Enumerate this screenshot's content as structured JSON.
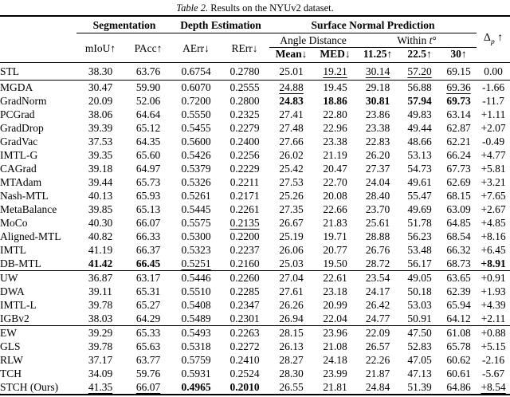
{
  "caption": {
    "label": "Table 2.",
    "text": "Results on the NYUv2 dataset."
  },
  "header": {
    "groups": [
      {
        "label": "Segmentation"
      },
      {
        "label": "Depth Estimation"
      },
      {
        "label": "Surface Normal Prediction"
      }
    ],
    "metric_cols": [
      "mIoU↑",
      "PAcc↑",
      "AErr↓",
      "RErr↓"
    ],
    "angle_distance": "Angle Distance",
    "within_prefix": "Within",
    "within_t": "t",
    "within_degree": "°",
    "angle_cols": [
      "Mean↓",
      "MED↓"
    ],
    "within_cols": [
      "11.25↑",
      "22.5↑",
      "30↑"
    ],
    "delta": {
      "symbol": "Δ",
      "sub": "p",
      "arrow": "↑"
    }
  },
  "sections": [
    {
      "rows": [
        {
          "method": "STL",
          "cells": [
            "38.30",
            "63.76",
            "0.6754",
            "0.2780",
            "25.01",
            "__19.21__",
            "__30.14__",
            "__57.20__",
            "69.15",
            "0.00"
          ]
        }
      ]
    },
    {
      "rows": [
        {
          "method": "MGDA",
          "cells": [
            "30.47",
            "59.90",
            "0.6070",
            "0.2555",
            "__24.88__",
            "19.45",
            "29.18",
            "56.88",
            "__69.36__",
            "-1.66"
          ]
        },
        {
          "method": "GradNorm",
          "cells": [
            "20.09",
            "52.06",
            "0.7200",
            "0.2800",
            "**24.83**",
            "**18.86**",
            "**30.81**",
            "**57.94**",
            "**69.73**",
            "-11.7"
          ]
        },
        {
          "method": "PCGrad",
          "cells": [
            "38.06",
            "64.64",
            "0.5550",
            "0.2325",
            "27.41",
            "22.80",
            "23.86",
            "49.83",
            "63.14",
            "+1.11"
          ]
        },
        {
          "method": "GradDrop",
          "cells": [
            "39.39",
            "65.12",
            "0.5455",
            "0.2279",
            "27.48",
            "22.96",
            "23.38",
            "49.44",
            "62.87",
            "+2.07"
          ]
        },
        {
          "method": "GradVac",
          "cells": [
            "37.53",
            "64.35",
            "0.5600",
            "0.2400",
            "27.66",
            "23.38",
            "22.83",
            "48.66",
            "62.21",
            "-0.49"
          ]
        },
        {
          "method": "IMTL-G",
          "cells": [
            "39.35",
            "65.60",
            "0.5426",
            "0.2256",
            "26.02",
            "21.19",
            "26.20",
            "53.13",
            "66.24",
            "+4.77"
          ]
        },
        {
          "method": "CAGrad",
          "cells": [
            "39.18",
            "64.97",
            "0.5379",
            "0.2229",
            "25.42",
            "20.47",
            "27.37",
            "54.73",
            "67.73",
            "+5.81"
          ]
        },
        {
          "method": "MTAdam",
          "cells": [
            "39.44",
            "65.73",
            "0.5326",
            "0.2211",
            "27.53",
            "22.70",
            "24.04",
            "49.61",
            "62.69",
            "+3.21"
          ]
        },
        {
          "method": "Nash-MTL",
          "cells": [
            "40.13",
            "65.93",
            "0.5261",
            "0.2171",
            "25.26",
            "20.08",
            "28.40",
            "55.47",
            "68.15",
            "+7.65"
          ]
        },
        {
          "method": "MetaBalance",
          "cells": [
            "39.85",
            "65.13",
            "0.5445",
            "0.2261",
            "27.35",
            "22.66",
            "23.70",
            "49.69",
            "63.09",
            "+2.67"
          ]
        },
        {
          "method": "MoCo",
          "cells": [
            "40.30",
            "66.07",
            "0.5575",
            "__0.2135__",
            "26.67",
            "21.83",
            "25.61",
            "51.78",
            "64.85",
            "+4.85"
          ]
        },
        {
          "method": "Aligned-MTL",
          "cells": [
            "40.82",
            "66.33",
            "0.5300",
            "0.2200",
            "25.19",
            "19.71",
            "28.88",
            "56.23",
            "68.54",
            "+8.16"
          ]
        },
        {
          "method": "IMTL",
          "cells": [
            "41.19",
            "66.37",
            "0.5323",
            "0.2237",
            "26.06",
            "20.77",
            "26.76",
            "53.48",
            "66.32",
            "+6.45"
          ]
        },
        {
          "method": "DB-MTL",
          "cells": [
            "**41.42**",
            "**66.45**",
            "__0.5251__",
            "0.2160",
            "25.03",
            "19.50",
            "28.72",
            "56.17",
            "68.73",
            "**+8.91**"
          ]
        }
      ]
    },
    {
      "rows": [
        {
          "method": "UW",
          "cells": [
            "36.87",
            "63.17",
            "0.5446",
            "0.2260",
            "27.04",
            "22.61",
            "23.54",
            "49.05",
            "63.65",
            "+0.91"
          ]
        },
        {
          "method": "DWA",
          "cells": [
            "39.11",
            "65.31",
            "0.5510",
            "0.2285",
            "27.61",
            "23.18",
            "24.17",
            "50.18",
            "62.39",
            "+1.93"
          ]
        },
        {
          "method": "IMTL-L",
          "cells": [
            "39.78",
            "65.27",
            "0.5408",
            "0.2347",
            "26.26",
            "20.99",
            "26.42",
            "53.03",
            "65.94",
            "+4.39"
          ]
        },
        {
          "method": "IGBv2",
          "cells": [
            "38.03",
            "64.29",
            "0.5489",
            "0.2301",
            "26.94",
            "22.04",
            "24.77",
            "50.91",
            "64.12",
            "+2.11"
          ]
        }
      ]
    },
    {
      "rows": [
        {
          "method": "EW",
          "cells": [
            "39.29",
            "65.33",
            "0.5493",
            "0.2263",
            "28.15",
            "23.96",
            "22.09",
            "47.50",
            "61.08",
            "+0.88"
          ]
        },
        {
          "method": "GLS",
          "cells": [
            "39.78",
            "65.63",
            "0.5318",
            "0.2272",
            "26.13",
            "21.08",
            "26.57",
            "52.83",
            "65.78",
            "+5.15"
          ]
        },
        {
          "method": "RLW",
          "cells": [
            "37.17",
            "63.77",
            "0.5759",
            "0.2410",
            "28.27",
            "24.18",
            "22.26",
            "47.05",
            "60.62",
            "-2.16"
          ]
        },
        {
          "method": "TCH",
          "cells": [
            "34.09",
            "59.76",
            "0.5931",
            "0.2524",
            "28.30",
            "23.99",
            "21.87",
            "47.13",
            "60.61",
            "-5.67"
          ]
        },
        {
          "method": "STCH (Ours)",
          "cells": [
            "__41.35__",
            "__66.07__",
            "**0.4965**",
            "**0.2010**",
            "26.55",
            "21.81",
            "24.84",
            "51.39",
            "64.86",
            "__+8.54__"
          ]
        }
      ]
    }
  ]
}
